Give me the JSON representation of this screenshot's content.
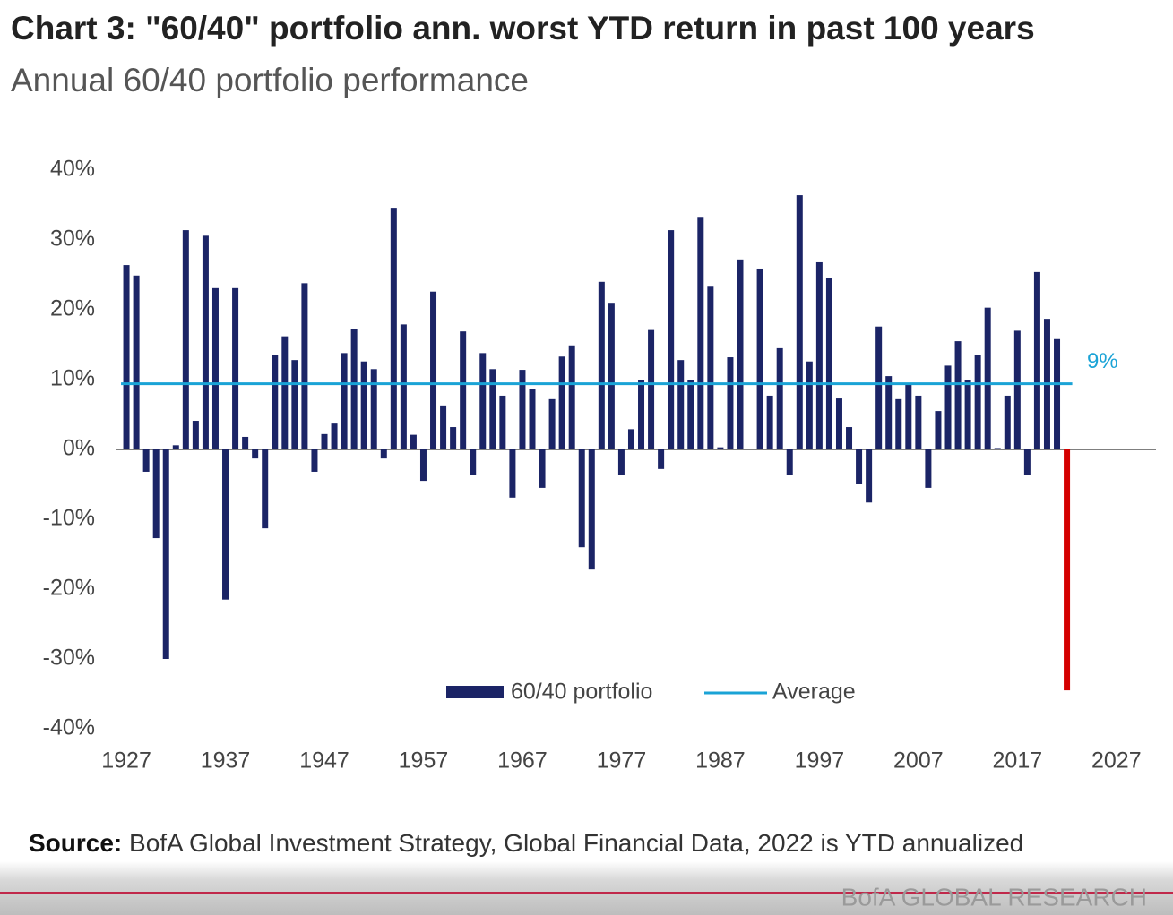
{
  "chart_data": {
    "type": "bar",
    "title": "Chart 3: \"60/40\" portfolio ann. worst YTD return in past 100 years",
    "subtitle": "Annual 60/40 portfolio performance",
    "source_label": "Source:",
    "source": "BofA Global Investment Strategy, Global Financial Data, 2022 is YTD annualized",
    "footer": "BofA GLOBAL RESEARCH",
    "x": [
      1927,
      1928,
      1929,
      1930,
      1931,
      1932,
      1933,
      1934,
      1935,
      1936,
      1937,
      1938,
      1939,
      1940,
      1941,
      1942,
      1943,
      1944,
      1945,
      1946,
      1947,
      1948,
      1949,
      1950,
      1951,
      1952,
      1953,
      1954,
      1955,
      1956,
      1957,
      1958,
      1959,
      1960,
      1961,
      1962,
      1963,
      1964,
      1965,
      1966,
      1967,
      1968,
      1969,
      1970,
      1971,
      1972,
      1973,
      1974,
      1975,
      1976,
      1977,
      1978,
      1979,
      1980,
      1981,
      1982,
      1983,
      1984,
      1985,
      1986,
      1987,
      1988,
      1989,
      1990,
      1991,
      1992,
      1993,
      1994,
      1995,
      1996,
      1997,
      1998,
      1999,
      2000,
      2001,
      2002,
      2003,
      2004,
      2005,
      2006,
      2007,
      2008,
      2009,
      2010,
      2011,
      2012,
      2013,
      2014,
      2015,
      2016,
      2017,
      2018,
      2019,
      2020,
      2021,
      2022
    ],
    "series": [
      {
        "name": "60/40 portfolio",
        "color": "#1b2466",
        "values": [
          26.4,
          24.9,
          -3.2,
          -12.7,
          -30,
          0.6,
          31.4,
          4.1,
          30.6,
          23.1,
          -21.5,
          23.1,
          1.8,
          -1.3,
          -11.3,
          13.5,
          16.2,
          12.8,
          23.8,
          -3.2,
          2.2,
          3.7,
          13.8,
          17.3,
          12.6,
          11.5,
          -1.3,
          34.6,
          17.9,
          2.1,
          -4.5,
          22.6,
          6.3,
          3.2,
          16.9,
          -3.6,
          13.8,
          11.5,
          7.7,
          -6.9,
          11.4,
          8.6,
          -5.5,
          7.2,
          13.3,
          14.9,
          -14,
          -17.2,
          24,
          21,
          -3.6,
          2.9,
          10,
          17.1,
          -2.8,
          31.4,
          12.8,
          10,
          33.3,
          23.3,
          0.3,
          13.2,
          27.2,
          0.1,
          25.9,
          7.7,
          14.5,
          -3.6,
          36.4,
          12.6,
          26.8,
          24.6,
          7.3,
          3.2,
          -5,
          -7.6,
          17.6,
          10.5,
          7.2,
          9.3,
          7.7,
          -5.5,
          5.5,
          12,
          15.5,
          10,
          13.5,
          20.3,
          0.2,
          7.7,
          17,
          -3.6,
          25.4,
          18.7,
          15.8,
          -34.5
        ],
        "colors": [
          "#1b2466",
          "#1b2466",
          "#1b2466",
          "#1b2466",
          "#1b2466",
          "#1b2466",
          "#1b2466",
          "#1b2466",
          "#1b2466",
          "#1b2466",
          "#1b2466",
          "#1b2466",
          "#1b2466",
          "#1b2466",
          "#1b2466",
          "#1b2466",
          "#1b2466",
          "#1b2466",
          "#1b2466",
          "#1b2466",
          "#1b2466",
          "#1b2466",
          "#1b2466",
          "#1b2466",
          "#1b2466",
          "#1b2466",
          "#1b2466",
          "#1b2466",
          "#1b2466",
          "#1b2466",
          "#1b2466",
          "#1b2466",
          "#1b2466",
          "#1b2466",
          "#1b2466",
          "#1b2466",
          "#1b2466",
          "#1b2466",
          "#1b2466",
          "#1b2466",
          "#1b2466",
          "#1b2466",
          "#1b2466",
          "#1b2466",
          "#1b2466",
          "#1b2466",
          "#1b2466",
          "#1b2466",
          "#1b2466",
          "#1b2466",
          "#1b2466",
          "#1b2466",
          "#1b2466",
          "#1b2466",
          "#1b2466",
          "#1b2466",
          "#1b2466",
          "#1b2466",
          "#1b2466",
          "#1b2466",
          "#1b2466",
          "#1b2466",
          "#1b2466",
          "#1b2466",
          "#1b2466",
          "#1b2466",
          "#1b2466",
          "#1b2466",
          "#1b2466",
          "#1b2466",
          "#1b2466",
          "#1b2466",
          "#1b2466",
          "#1b2466",
          "#1b2466",
          "#1b2466",
          "#1b2466",
          "#1b2466",
          "#1b2466",
          "#1b2466",
          "#1b2466",
          "#1b2466",
          "#1b2466",
          "#1b2466",
          "#1b2466",
          "#1b2466",
          "#1b2466",
          "#1b2466",
          "#1b2466",
          "#1b2466",
          "#1b2466",
          "#1b2466",
          "#1b2466",
          "#1b2466",
          "#1b2466",
          "#d40000"
        ]
      },
      {
        "name": "Average",
        "color": "#1aa3d6",
        "value": 9.4,
        "value_label": "9%"
      }
    ],
    "xlim": [
      1926,
      2031
    ],
    "xticks": [
      1927,
      1937,
      1947,
      1957,
      1967,
      1977,
      1987,
      1997,
      2007,
      2017,
      2027
    ],
    "ylim": [
      -40,
      40
    ],
    "yticks": [
      {
        "value": 40,
        "label": "40%"
      },
      {
        "value": 30,
        "label": "30%"
      },
      {
        "value": 20,
        "label": "20%"
      },
      {
        "value": 10,
        "label": "10%"
      },
      {
        "value": 0,
        "label": "0%"
      },
      {
        "value": -10,
        "label": "-10%"
      },
      {
        "value": -20,
        "label": "-20%"
      },
      {
        "value": -30,
        "label": "-30%"
      },
      {
        "value": -40,
        "label": "-40%"
      }
    ],
    "grid": false
  }
}
